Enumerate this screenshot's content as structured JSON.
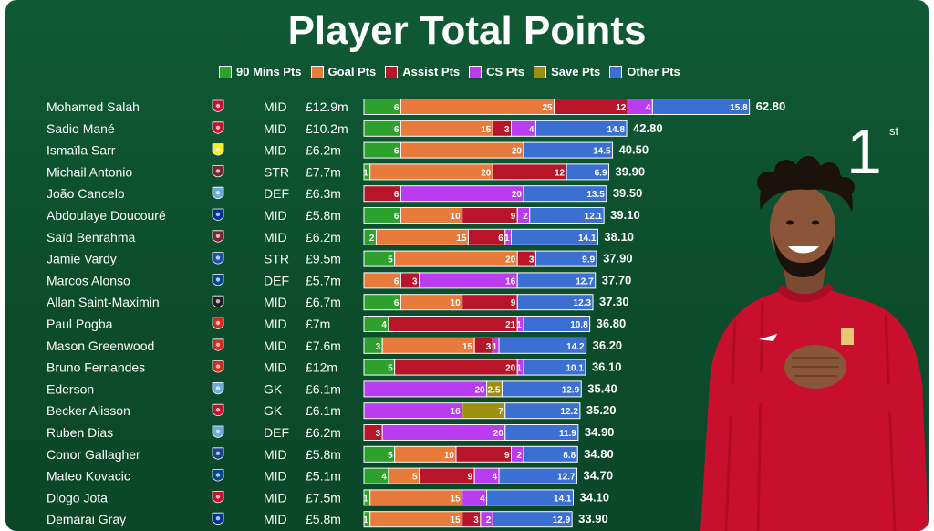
{
  "title": "Player Total Points",
  "rank": {
    "number": "1",
    "suffix": "st"
  },
  "legend": [
    {
      "label": "90 Mins Pts",
      "color": "#2ea02e"
    },
    {
      "label": "Goal Pts",
      "color": "#e87a3c"
    },
    {
      "label": "Assist Pts",
      "color": "#b8152b"
    },
    {
      "label": "CS Pts",
      "color": "#b93cf0"
    },
    {
      "label": "Save Pts",
      "color": "#9c8f10"
    },
    {
      "label": "Other Pts",
      "color": "#3b6fd1"
    }
  ],
  "chart_data": {
    "type": "bar",
    "orientation": "horizontal",
    "stacked": true,
    "title": "Player Total Points",
    "series_names": [
      "90 Mins Pts",
      "Goal Pts",
      "Assist Pts",
      "CS Pts",
      "Save Pts",
      "Other Pts"
    ],
    "players": [
      {
        "name": "Mohamed Salah",
        "club_badge": "liverpool-badge",
        "pos": "MID",
        "price": "£12.9m",
        "total": "62.80",
        "segs": [
          6,
          25,
          12,
          4,
          0,
          15.8
        ]
      },
      {
        "name": "Sadio Mané",
        "club_badge": "liverpool-badge",
        "pos": "MID",
        "price": "£10.2m",
        "total": "42.80",
        "segs": [
          6,
          15,
          3,
          4,
          0,
          14.8
        ]
      },
      {
        "name": "Ismaïla Sarr",
        "club_badge": "watford-badge",
        "pos": "MID",
        "price": "£6.2m",
        "total": "40.50",
        "segs": [
          6,
          20,
          0,
          0,
          0,
          14.5
        ]
      },
      {
        "name": "Michail Antonio",
        "club_badge": "westham-badge",
        "pos": "STR",
        "price": "£7.7m",
        "total": "39.90",
        "segs": [
          1,
          20,
          12,
          0,
          0,
          6.9
        ]
      },
      {
        "name": "João Cancelo",
        "club_badge": "mancity-badge",
        "pos": "DEF",
        "price": "£6.3m",
        "total": "39.50",
        "segs": [
          0,
          0,
          6,
          20,
          0,
          13.5
        ]
      },
      {
        "name": "Abdoulaye Doucouré",
        "club_badge": "everton-badge",
        "pos": "MID",
        "price": "£5.8m",
        "total": "39.10",
        "segs": [
          6,
          10,
          9,
          2,
          0,
          12.1
        ]
      },
      {
        "name": "Saïd Benrahma",
        "club_badge": "westham-badge",
        "pos": "MID",
        "price": "£6.2m",
        "total": "38.10",
        "segs": [
          2,
          15,
          6,
          1,
          0,
          14.1
        ]
      },
      {
        "name": "Jamie Vardy",
        "club_badge": "leicester-badge",
        "pos": "STR",
        "price": "£9.5m",
        "total": "37.90",
        "segs": [
          5,
          20,
          3,
          0,
          0,
          9.9
        ]
      },
      {
        "name": "Marcos Alonso",
        "club_badge": "chelsea-badge",
        "pos": "DEF",
        "price": "£5.7m",
        "total": "37.70",
        "segs": [
          0,
          6,
          3,
          16,
          0,
          12.7
        ]
      },
      {
        "name": "Allan Saint-Maximin",
        "club_badge": "newcastle-badge",
        "pos": "MID",
        "price": "£6.7m",
        "total": "37.30",
        "segs": [
          6,
          10,
          9,
          0,
          0,
          12.3
        ]
      },
      {
        "name": "Paul Pogba",
        "club_badge": "manutd-badge",
        "pos": "MID",
        "price": "£7m",
        "total": "36.80",
        "segs": [
          4,
          0,
          21,
          1,
          0,
          10.8
        ]
      },
      {
        "name": "Mason Greenwood",
        "club_badge": "manutd-badge",
        "pos": "MID",
        "price": "£7.6m",
        "total": "36.20",
        "segs": [
          3,
          15,
          3,
          1,
          0,
          14.2
        ]
      },
      {
        "name": "Bruno Fernandes",
        "club_badge": "manutd-badge",
        "pos": "MID",
        "price": "£12m",
        "total": "36.10",
        "segs": [
          5,
          0,
          20,
          1,
          0,
          10.1
        ]
      },
      {
        "name": "Ederson",
        "club_badge": "mancity-badge",
        "pos": "GK",
        "price": "£6.1m",
        "total": "35.40",
        "segs": [
          0,
          0,
          0,
          20,
          2.5,
          12.9
        ]
      },
      {
        "name": "Becker Alisson",
        "club_badge": "liverpool-badge",
        "pos": "GK",
        "price": "£6.1m",
        "total": "35.20",
        "segs": [
          0,
          0,
          0,
          16,
          7,
          12.2
        ]
      },
      {
        "name": "Ruben Dias",
        "club_badge": "mancity-badge",
        "pos": "DEF",
        "price": "£6.2m",
        "total": "34.90",
        "segs": [
          0,
          0,
          3,
          20,
          0,
          11.9
        ]
      },
      {
        "name": "Conor Gallagher",
        "club_badge": "palace-badge",
        "pos": "MID",
        "price": "£5.8m",
        "total": "34.80",
        "segs": [
          5,
          10,
          9,
          2,
          0,
          8.8
        ]
      },
      {
        "name": "Mateo Kovacic",
        "club_badge": "chelsea-badge",
        "pos": "MID",
        "price": "£5.1m",
        "total": "34.70",
        "segs": [
          4,
          5,
          9,
          4,
          0,
          12.7
        ]
      },
      {
        "name": "Diogo Jota",
        "club_badge": "liverpool-badge",
        "pos": "MID",
        "price": "£7.5m",
        "total": "34.10",
        "segs": [
          1,
          15,
          0,
          4,
          0,
          14.1
        ]
      },
      {
        "name": "Demarai Gray",
        "club_badge": "everton-badge",
        "pos": "MID",
        "price": "£5.8m",
        "total": "33.90",
        "segs": [
          1,
          15,
          3,
          2,
          0,
          12.9
        ]
      }
    ]
  },
  "club_colors": {
    "liverpool-badge": "#c8102e",
    "watford-badge": "#fbee23",
    "westham-badge": "#7a263a",
    "mancity-badge": "#6cabdd",
    "everton-badge": "#003399",
    "leicester-badge": "#1f4fb3",
    "chelsea-badge": "#034694",
    "newcastle-badge": "#241f20",
    "manutd-badge": "#da291c",
    "palace-badge": "#1b458f"
  },
  "player_photo": "mohamed-salah-photo"
}
